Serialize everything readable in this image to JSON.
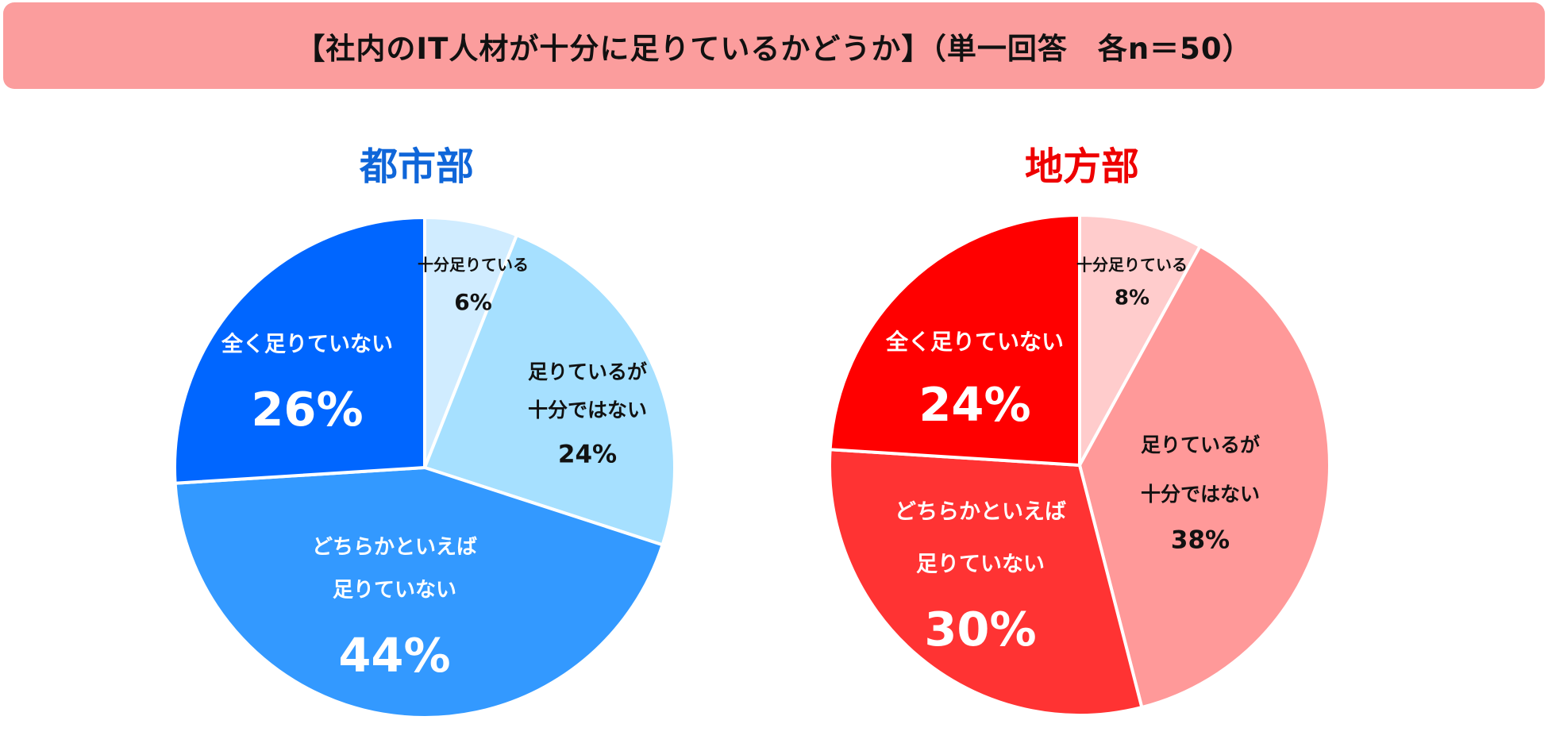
{
  "title": "【社内のIT人材が十分に足りているかどうか】（単一回答　各n＝50）",
  "chart_data": [
    {
      "type": "pie",
      "title": "都市部",
      "title_color": "#0f66d9",
      "slices": [
        {
          "label_lines": [
            "十分足りている"
          ],
          "value": 6,
          "value_text": "6%",
          "color": "#d0ecff",
          "text_color": "#111111"
        },
        {
          "label_lines": [
            "足りているが",
            "十分ではない"
          ],
          "value": 24,
          "value_text": "24%",
          "color": "#a6e0ff",
          "text_color": "#111111"
        },
        {
          "label_lines": [
            "どちらかといえば",
            "足りていない"
          ],
          "value": 44,
          "value_text": "44%",
          "color": "#3399ff",
          "text_color": "#ffffff"
        },
        {
          "label_lines": [
            "全く足りていない"
          ],
          "value": 26,
          "value_text": "26%",
          "color": "#0066ff",
          "text_color": "#ffffff"
        }
      ]
    },
    {
      "type": "pie",
      "title": "地方部",
      "title_color": "#ee0000",
      "slices": [
        {
          "label_lines": [
            "十分足りている"
          ],
          "value": 8,
          "value_text": "8%",
          "color": "#ffcccc",
          "text_color": "#111111"
        },
        {
          "label_lines": [
            "足りているが",
            "十分ではない"
          ],
          "value": 38,
          "value_text": "38%",
          "color": "#ff9999",
          "text_color": "#111111"
        },
        {
          "label_lines": [
            "どちらかといえば",
            "足りていない"
          ],
          "value": 30,
          "value_text": "30%",
          "color": "#ff3333",
          "text_color": "#ffffff"
        },
        {
          "label_lines": [
            "全く足りていない"
          ],
          "value": 24,
          "value_text": "24%",
          "color": "#ff0000",
          "text_color": "#ffffff"
        }
      ]
    }
  ]
}
